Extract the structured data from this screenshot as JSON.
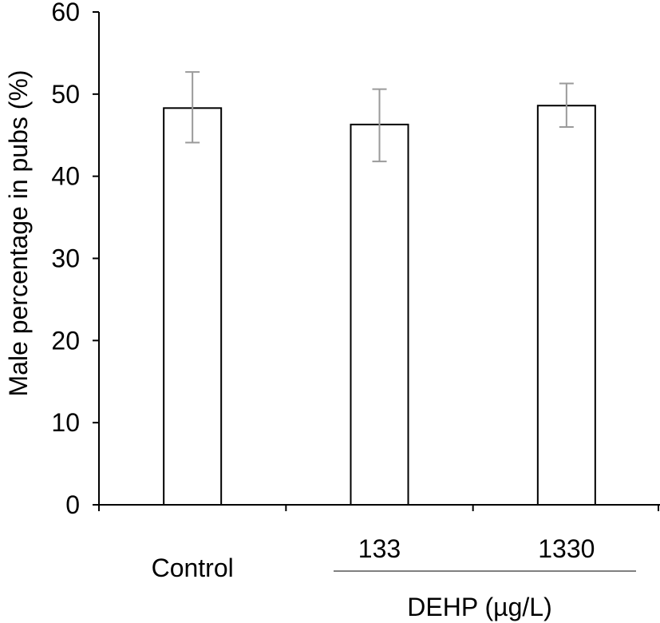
{
  "chart_data": {
    "type": "bar",
    "title": "",
    "ylabel": "Male percentage in pubs (%)",
    "xlabel": "",
    "ylim": [
      0,
      60
    ],
    "yticks": [
      0,
      10,
      20,
      30,
      40,
      50,
      60
    ],
    "categories": [
      "Control",
      "133",
      "1330"
    ],
    "values": [
      48.3,
      46.3,
      48.6
    ],
    "errors": [
      [
        44.1,
        52.7
      ],
      [
        41.8,
        50.6
      ],
      [
        46.0,
        51.3
      ]
    ],
    "group_label": "DEHP (µg/L)",
    "bar_fill": "#ffffff",
    "bar_stroke": "#000000",
    "error_color": "#9a9a9a",
    "grid": false,
    "legend": "none"
  }
}
